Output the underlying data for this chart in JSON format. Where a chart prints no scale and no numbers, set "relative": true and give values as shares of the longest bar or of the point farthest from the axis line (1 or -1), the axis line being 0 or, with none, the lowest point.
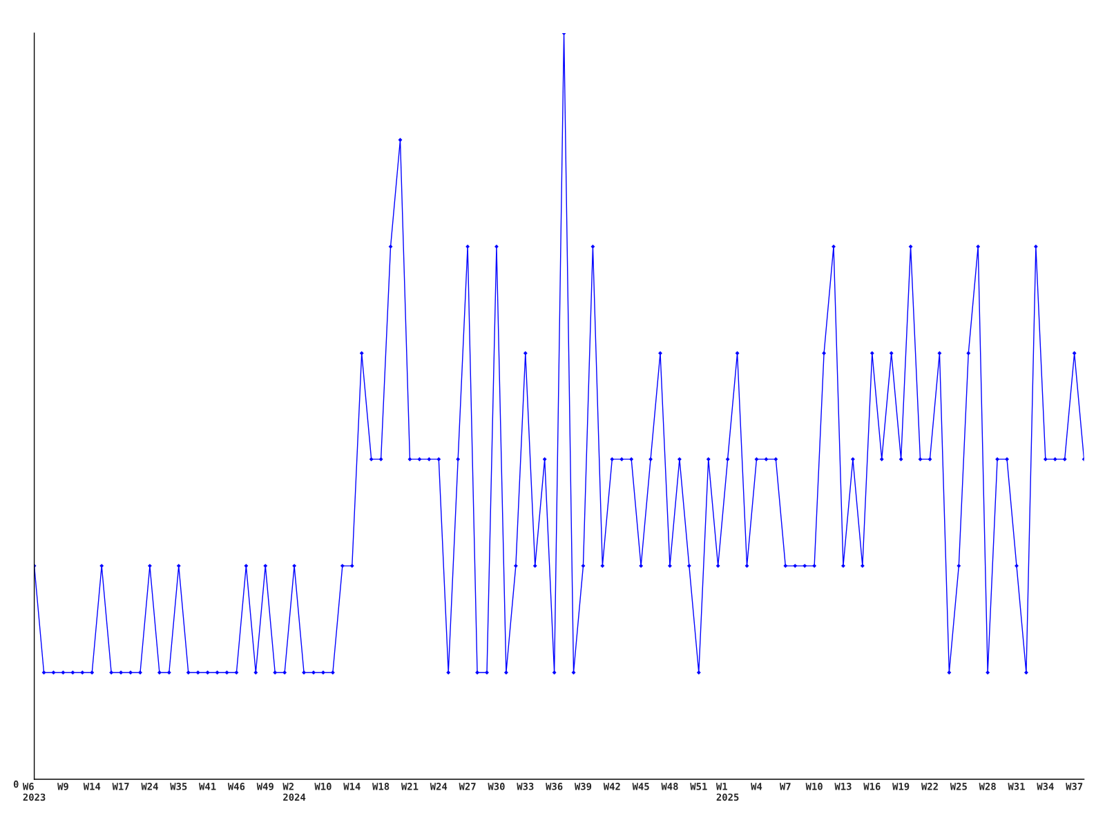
{
  "chart_data": {
    "type": "line",
    "relative": true,
    "marker": "diamond",
    "line_style": "solid",
    "grid": false,
    "legend": false,
    "annotations": [
      "0"
    ],
    "categories": [
      "W6\n2023",
      null,
      null,
      "W9",
      null,
      null,
      "W14",
      null,
      null,
      "W17",
      null,
      null,
      "W24",
      null,
      null,
      "W35",
      null,
      null,
      "W41",
      null,
      null,
      "W46",
      null,
      null,
      "W49",
      null,
      null,
      "W2\n2024",
      null,
      null,
      "W10",
      null,
      null,
      "W14",
      null,
      null,
      "W18",
      null,
      null,
      "W21",
      null,
      null,
      "W24",
      null,
      null,
      "W27",
      null,
      null,
      "W30",
      null,
      null,
      "W33",
      null,
      null,
      "W36",
      null,
      null,
      "W39",
      null,
      null,
      "W42",
      null,
      null,
      "W45",
      null,
      null,
      "W48",
      null,
      null,
      "W51",
      null,
      null,
      "W1\n2025",
      null,
      null,
      "W4",
      null,
      null,
      "W7",
      null,
      null,
      "W10",
      null,
      null,
      "W13",
      null,
      null,
      "W16",
      null,
      null,
      "W19",
      null,
      null,
      "W22",
      null,
      null,
      "W25",
      null,
      null,
      "W28",
      null,
      null,
      "W31",
      null,
      null,
      "W34",
      null,
      null,
      "W37",
      null
    ],
    "series": [
      {
        "color": "#0000ff",
        "values": [
          0.286,
          0.143,
          0.143,
          0.143,
          0.143,
          0.143,
          0.143,
          0.286,
          0.143,
          0.143,
          0.143,
          0.143,
          0.286,
          0.143,
          0.143,
          0.286,
          0.143,
          0.143,
          0.143,
          0.143,
          0.143,
          0.143,
          0.286,
          0.143,
          0.286,
          0.143,
          0.143,
          0.286,
          0.143,
          0.143,
          0.143,
          0.143,
          0.286,
          0.286,
          0.571,
          0.429,
          0.429,
          0.714,
          0.857,
          0.429,
          0.429,
          0.429,
          0.429,
          0.143,
          0.429,
          0.714,
          0.143,
          0.143,
          0.714,
          0.143,
          0.286,
          0.571,
          0.286,
          0.429,
          0.143,
          1,
          0.143,
          0.286,
          0.714,
          0.286,
          0.429,
          0.429,
          0.429,
          0.286,
          0.429,
          0.571,
          0.286,
          0.429,
          0.286,
          0.143,
          0.429,
          0.286,
          0.429,
          0.571,
          0.286,
          0.429,
          0.429,
          0.429,
          0.286,
          0.286,
          0.286,
          0.286,
          0.571,
          0.714,
          0.286,
          0.429,
          0.286,
          0.571,
          0.429,
          0.571,
          0.429,
          0.714,
          0.429,
          0.429,
          0.571,
          0.143,
          0.286,
          0.571,
          0.714,
          0.143,
          0.429,
          0.429,
          0.286,
          0.143,
          0.714,
          0.429,
          0.429,
          0.429,
          0.571,
          0.429
        ]
      }
    ]
  }
}
